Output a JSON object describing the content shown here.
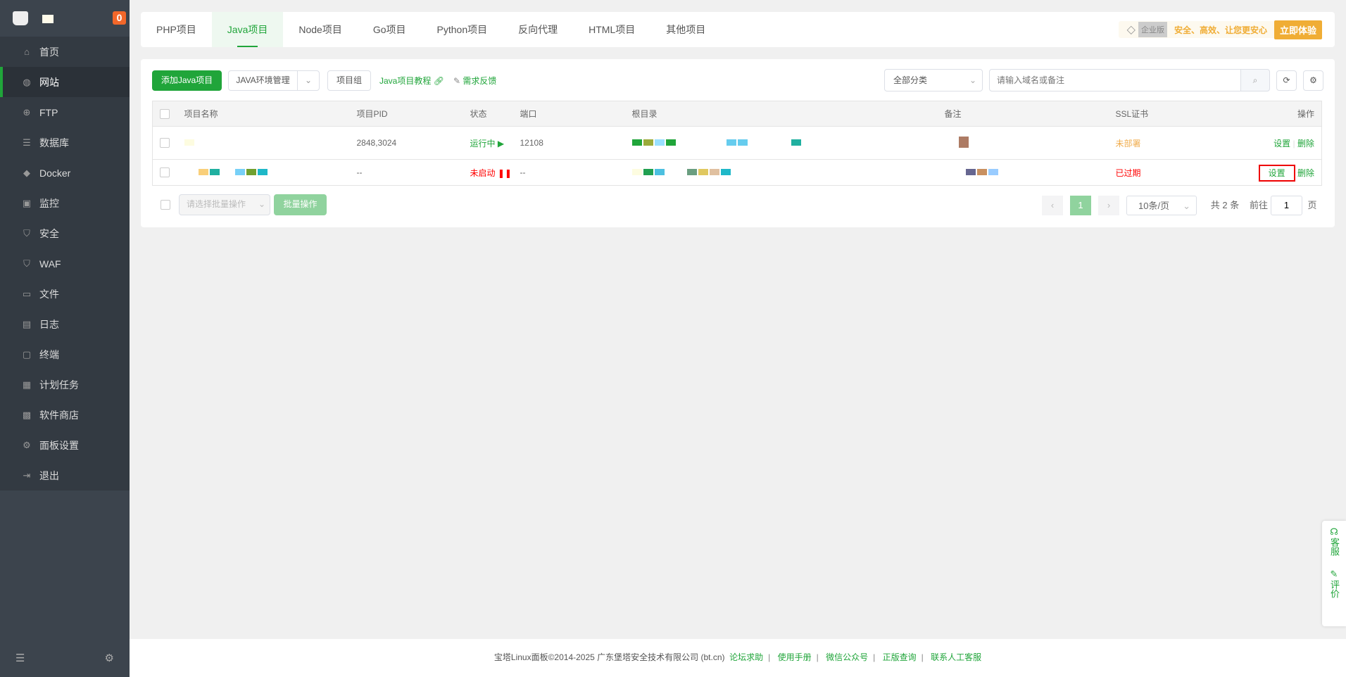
{
  "sidebar": {
    "badge": "0",
    "items": [
      {
        "label": "首页",
        "icon": "home-icon",
        "g": "⌂"
      },
      {
        "label": "网站",
        "icon": "globe-icon",
        "g": "◍"
      },
      {
        "label": "FTP",
        "icon": "ftp-icon",
        "g": "⊕"
      },
      {
        "label": "数据库",
        "icon": "database-icon",
        "g": "☰"
      },
      {
        "label": "Docker",
        "icon": "docker-icon",
        "g": "◆"
      },
      {
        "label": "监控",
        "icon": "monitor-icon",
        "g": "▣"
      },
      {
        "label": "安全",
        "icon": "shield-icon",
        "g": "⛉"
      },
      {
        "label": "WAF",
        "icon": "waf-icon",
        "g": "⛉"
      },
      {
        "label": "文件",
        "icon": "folder-icon",
        "g": "▭"
      },
      {
        "label": "日志",
        "icon": "log-icon",
        "g": "▤"
      },
      {
        "label": "终端",
        "icon": "terminal-icon",
        "g": "▢"
      },
      {
        "label": "计划任务",
        "icon": "calendar-icon",
        "g": "▦"
      },
      {
        "label": "软件商店",
        "icon": "apps-icon",
        "g": "▩"
      },
      {
        "label": "面板设置",
        "icon": "gear-icon",
        "g": "⚙"
      },
      {
        "label": "退出",
        "icon": "logout-icon",
        "g": "⇥"
      }
    ]
  },
  "tabs": [
    "PHP项目",
    "Java项目",
    "Node项目",
    "Go项目",
    "Python项目",
    "反向代理",
    "HTML项目",
    "其他项目"
  ],
  "enterprise": {
    "tag": "企业版",
    "slogan": "安全、高效、让您更安心",
    "button": "立即体验"
  },
  "toolbar": {
    "add": "添加Java项目",
    "env": "JAVA环境管理",
    "group": "项目组",
    "tutorial": "Java项目教程",
    "feedback": "需求反馈",
    "category": "全部分类",
    "search_placeholder": "请输入域名或备注"
  },
  "table": {
    "headers": [
      "项目名称",
      "项目PID",
      "状态",
      "端口",
      "根目录",
      "备注",
      "SSL证书",
      "操作"
    ],
    "rows": [
      {
        "pid": "2848,3024",
        "status": "运行中",
        "port": "12108",
        "ssl": "未部署",
        "set": "设置",
        "del": "删除"
      },
      {
        "pid": "--",
        "status": "未启动",
        "port": "--",
        "ssl": "已过期",
        "set": "设置",
        "del": "删除"
      }
    ]
  },
  "batch": {
    "placeholder": "请选择批量操作",
    "button": "批量操作"
  },
  "pagination": {
    "current": "1",
    "per_page": "10条/页",
    "total": "共 2 条",
    "goto": "前往",
    "page_input": "1",
    "page_unit": "页"
  },
  "footer": {
    "copyright": "宝塔Linux面板©2014-2025 广东堡塔安全技术有限公司 (bt.cn)",
    "links": [
      "论坛求助",
      "使用手册",
      "微信公众号",
      "正版查询",
      "联系人工客服"
    ]
  },
  "float": {
    "service": "客服",
    "review": "评价"
  },
  "colors": {
    "accent": "#20a53a",
    "sidebar": "#3c444d",
    "danger": "#ff0000",
    "warning": "#f0ad4e"
  }
}
